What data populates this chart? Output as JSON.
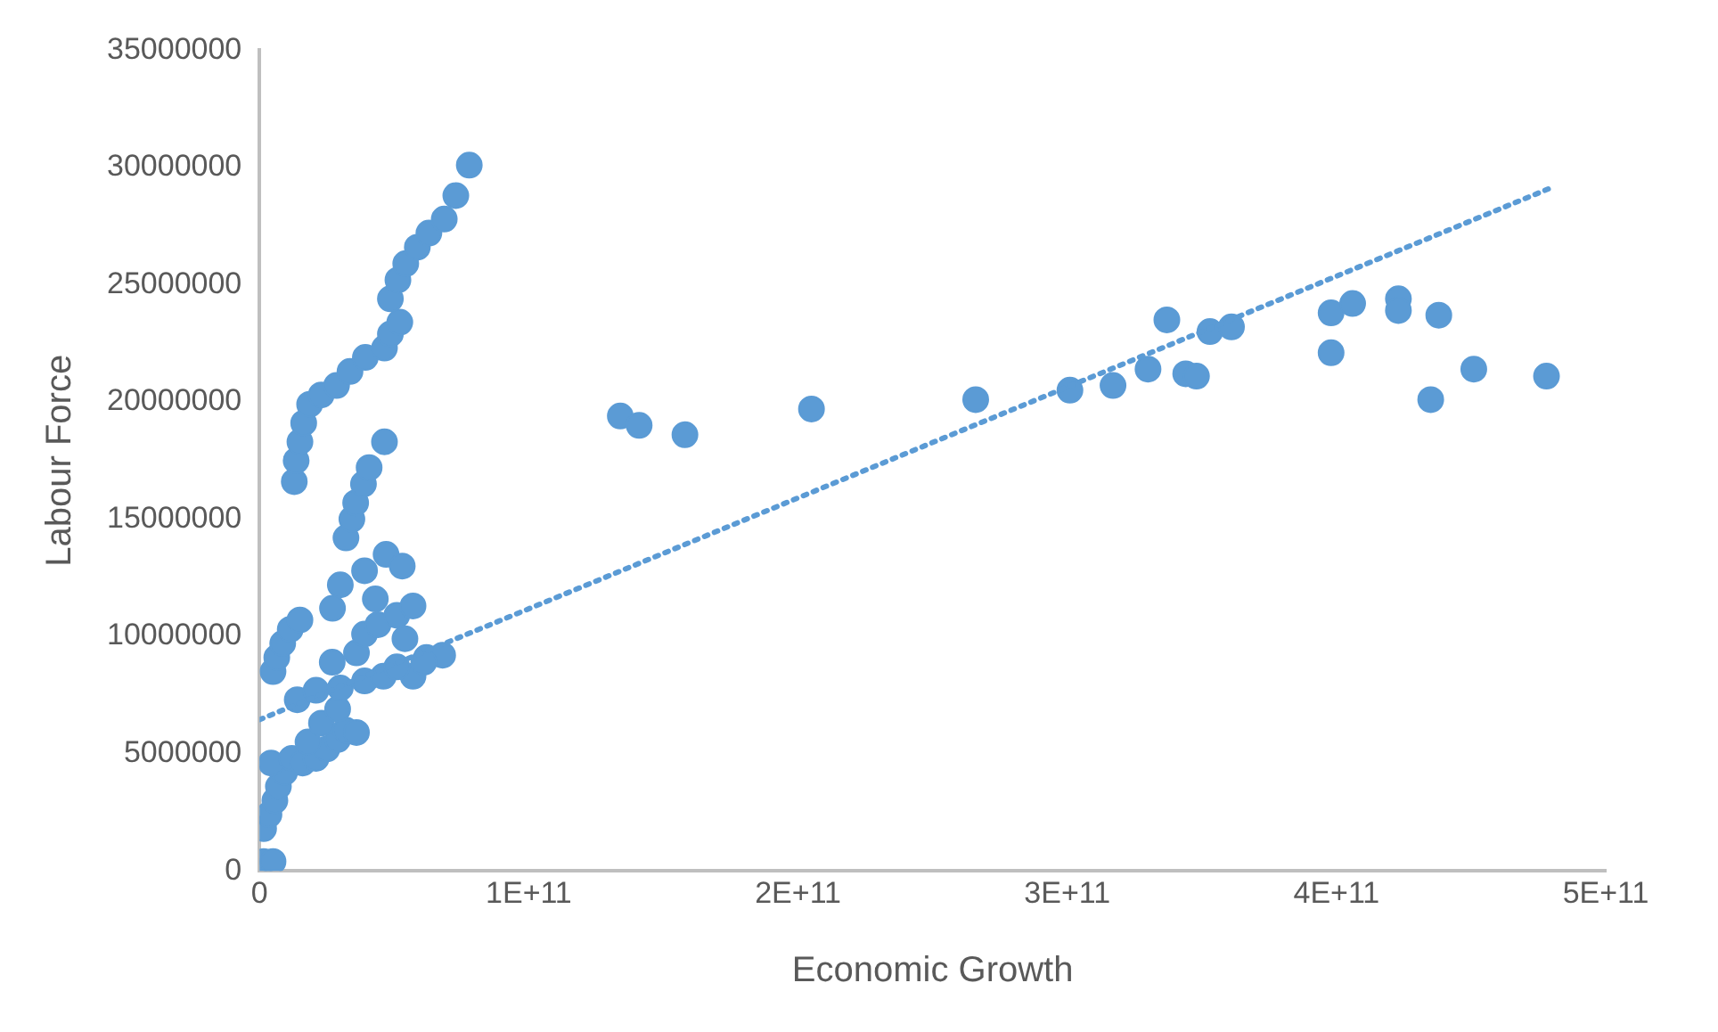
{
  "chart_data": {
    "type": "scatter",
    "xlabel": "Economic Growth",
    "ylabel": "Labour Force",
    "xlim": [
      0,
      500000000000.0
    ],
    "xticks": [
      {
        "value": 0,
        "label": "0"
      },
      {
        "value": 100000000000.0,
        "label": "1E+11"
      },
      {
        "value": 200000000000.0,
        "label": "2E+11"
      },
      {
        "value": 300000000000.0,
        "label": "3E+11"
      },
      {
        "value": 400000000000.0,
        "label": "4E+11"
      },
      {
        "value": 500000000000.0,
        "label": "5E+11"
      }
    ],
    "ylim": [
      0,
      35000000
    ],
    "yticks": [
      0,
      5000000,
      10000000,
      15000000,
      20000000,
      25000000,
      30000000,
      35000000
    ],
    "grid": false,
    "legend": false,
    "marker": "circle",
    "series": [
      {
        "color": "#5b9bd5",
        "x": [
          1500000000.0,
          5000000000.0,
          1500000000.0,
          3500000000.0,
          5700000000.0,
          7000000000.0,
          9300000000.0,
          4300000000.0,
          12000000000.0,
          16000000000.0,
          21000000000.0,
          25000000000.0,
          18000000000.0,
          29000000000.0,
          32000000000.0,
          36000000000.0,
          23000000000.0,
          29000000000.0,
          14000000000.0,
          21000000000.0,
          30000000000.0,
          39000000000.0,
          46000000000.0,
          57000000000.0,
          27000000000.0,
          36000000000.0,
          5000000000.0,
          6400000000.0,
          8600000000.0,
          11400000000.0,
          15000000000.0,
          39000000000.0,
          44000000000.0,
          51000000000.0,
          57000000000.0,
          43000000000.0,
          54000000000.0,
          62000000000.0,
          68000000000.0,
          61000000000.0,
          51000000000.0,
          47000000000.0,
          53000000000.0,
          39000000000.0,
          30000000000.0,
          27100000000.0,
          32100000000.0,
          34300000000.0,
          35700000000.0,
          38600000000.0,
          40700000000.0,
          46400000000.0,
          12900000000.0,
          13600000000.0,
          15000000000.0,
          16400000000.0,
          18600000000.0,
          22900000000.0,
          28600000000.0,
          33600000000.0,
          39300000000.0,
          46400000000.0,
          48600000000.0,
          52100000000.0,
          48600000000.0,
          51400000000.0,
          54300000000.0,
          58600000000.0,
          62900000000.0,
          68600000000.0,
          72900000000.0,
          77900000000.0,
          134000000000.0,
          141000000000.0,
          158000000000.0,
          205000000000.0,
          266000000000.0,
          301000000000.0,
          317000000000.0,
          330000000000.0,
          337000000000.0,
          344000000000.0,
          348000000000.0,
          353000000000.0,
          361000000000.0,
          398000000000.0,
          398000000000.0,
          406000000000.0,
          423000000000.0,
          423000000000.0,
          435000000000.0,
          438000000000.0,
          451000000000.0,
          478000000000.0
        ],
        "values": [
          400000,
          400000,
          1800000,
          2400000,
          3000000,
          3600000,
          4200000,
          4600000,
          4800000,
          4600000,
          4800000,
          5200000,
          5500000,
          5600000,
          6000000,
          5900000,
          6300000,
          6900000,
          7300000,
          7700000,
          7800000,
          8100000,
          8300000,
          8300000,
          8900000,
          9300000,
          8500000,
          9100000,
          9700000,
          10300000,
          10700000,
          10100000,
          10500000,
          10900000,
          11300000,
          11600000,
          9900000,
          9100000,
          9200000,
          8900000,
          8700000,
          13500000,
          13000000,
          12800000,
          12200000,
          11200000,
          14200000,
          15000000,
          15700000,
          16500000,
          17200000,
          18300000,
          16600000,
          17500000,
          18300000,
          19100000,
          19900000,
          20300000,
          20700000,
          21300000,
          21900000,
          22300000,
          22900000,
          23400000,
          24400000,
          25200000,
          25900000,
          26600000,
          27200000,
          27800000,
          28800000,
          30100000,
          19400000,
          19000000,
          18600000,
          19700000,
          20100000,
          20500000,
          20700000,
          21400000,
          23500000,
          21200000,
          21100000,
          23000000,
          23200000,
          22100000,
          23800000,
          24200000,
          24400000,
          23900000,
          20100000,
          23700000,
          21400000,
          21100000
        ]
      },
      {
        "type": "line",
        "color": "#5b9bd5",
        "line_style": "dotted",
        "marker": "none",
        "x": [
          0,
          479000000000.0
        ],
        "values": [
          6450000,
          29100000
        ]
      }
    ]
  }
}
